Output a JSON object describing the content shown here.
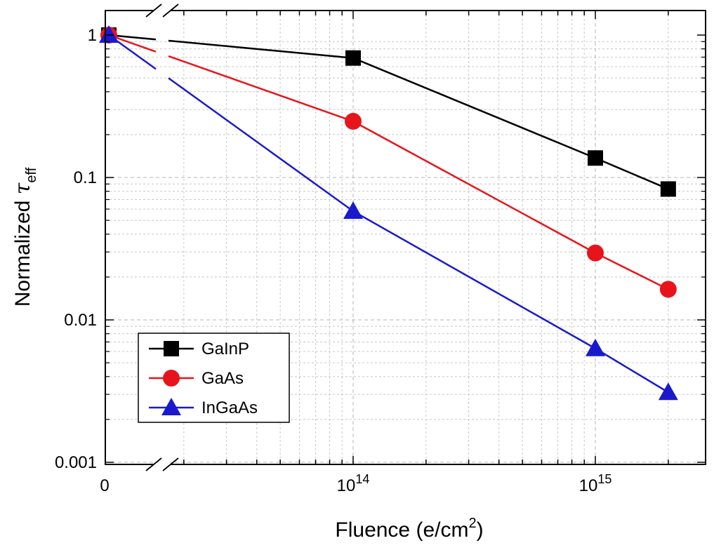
{
  "chart_data": {
    "type": "line",
    "xlabel_main": "Fluence (e/cm",
    "xlabel_sup": "2",
    "xlabel_end": ")",
    "ylabel_main": "Normalized ",
    "ylabel_tau": "τ",
    "ylabel_sub": "eff",
    "x_scale": "log with axis break (0 shown left of break)",
    "y_scale": "log",
    "ylim": [
      0.001,
      1.6
    ],
    "xlim": [
      0,
      3000000000000000.0
    ],
    "grid": true,
    "legend_position": "bottom-left",
    "x_ticks": [
      {
        "label": "0",
        "value": 0
      },
      {
        "base": "10",
        "exp": "14",
        "value": 100000000000000.0
      },
      {
        "base": "10",
        "exp": "15",
        "value": 1000000000000000.0
      }
    ],
    "y_ticks": [
      {
        "label": "1",
        "value": 1
      },
      {
        "label": "0.1",
        "value": 0.1
      },
      {
        "label": "0.01",
        "value": 0.01
      },
      {
        "label": "0.001",
        "value": 0.001
      }
    ],
    "x": [
      0,
      100000000000000.0,
      1000000000000000.0,
      2000000000000000.0
    ],
    "series": [
      {
        "name": "GaInP",
        "marker": "square",
        "color": "#000000",
        "values": [
          1.0,
          0.69,
          0.137,
          0.083
        ]
      },
      {
        "name": "GaAs",
        "marker": "circle",
        "color": "#e8141b",
        "values": [
          1.0,
          0.248,
          0.0295,
          0.0164
        ]
      },
      {
        "name": "InGaAs",
        "marker": "triangle",
        "color": "#1a1acc",
        "values": [
          1.0,
          0.058,
          0.0063,
          0.0031
        ]
      }
    ]
  }
}
